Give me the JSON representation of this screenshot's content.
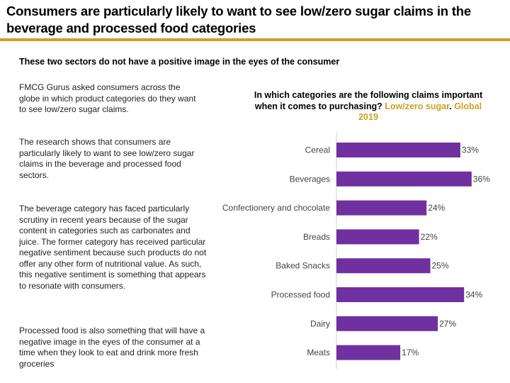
{
  "header": {
    "title": "Consumers are particularly likely to want to see low/zero sugar claims in the beverage and processed food categories",
    "subtitle": "These two sectors do not have a positive image in the eyes of the consumer"
  },
  "body": {
    "paragraphs": [
      "FMCG Gurus asked consumers across the globe in which product categories do they want to see low/zero sugar claims.",
      "The research shows that consumers are particularly likely to want to see low/zero sugar claims in the beverage and processed food sectors.",
      "The beverage category has faced particularly scrutiny in recent years because of the sugar content in categories such as carbonates and juice. The former category has received particular negative sentiment because such products do not offer any other form of nutritional value. As such, this negative sentiment is something that appears to resonate with consumers.",
      "Processed food is also something that will have a negative image in the eyes of the consumer at a time when they look to eat and drink more fresh groceries"
    ]
  },
  "colors": {
    "accent": "#c9a227",
    "bar": "#7030a0"
  },
  "chart_data": {
    "type": "bar",
    "orientation": "horizontal",
    "title_part1": "In which categories are the following claims important when it comes to purchasing? ",
    "title_highlight1": "Low/zero sugar",
    "title_sep": ". ",
    "title_highlight2": "Global 2019",
    "categories": [
      "Cereal",
      "Beverages",
      "Confectionery and chocolate",
      "Breads",
      "Baked Snacks",
      "Processed food",
      "Dairy",
      "Meats"
    ],
    "values": [
      33,
      36,
      24,
      22,
      25,
      34,
      27,
      17
    ],
    "data_labels": [
      "33%",
      "36%",
      "24%",
      "22%",
      "25%",
      "34%",
      "27%",
      "17%"
    ],
    "unit": "%",
    "grid": false,
    "legend": "none"
  }
}
